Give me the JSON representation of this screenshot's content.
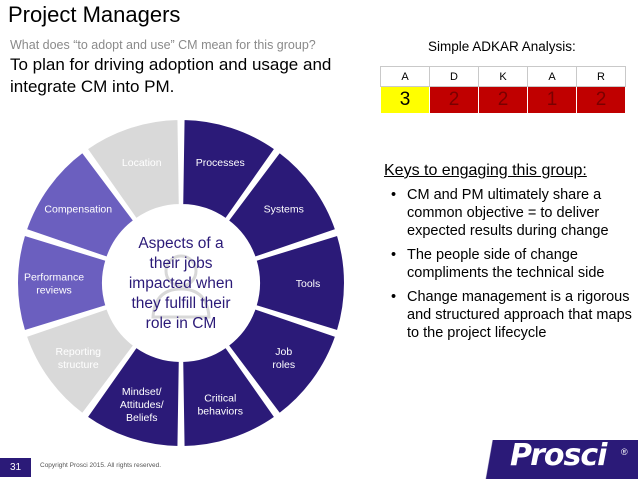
{
  "slide": {
    "title": "Project Managers",
    "question": "What does “to adopt and use” CM mean for this group?",
    "purpose": "To plan for driving adoption and usage and integrate CM into PM.",
    "slide_number": "31",
    "copyright": "Copyright Prosci 2015. All rights reserved.",
    "logo": "Prosci",
    "logo_mark": "®"
  },
  "adkar": {
    "label": "Simple ADKAR Analysis:",
    "headers": [
      "A",
      "D",
      "K",
      "A",
      "R"
    ],
    "scores": [
      "3",
      "2",
      "2",
      "1",
      "2"
    ],
    "score_colors": [
      "#ffff00",
      "#c00000",
      "#c00000",
      "#c00000",
      "#c00000"
    ]
  },
  "wheel": {
    "center_text": [
      "Aspects of a",
      "their jobs",
      "impacted when",
      "they fulfill their",
      "role in CM"
    ],
    "center_icon": "person-icon",
    "colors": {
      "purple": "#2b1a78",
      "light_purple": "#6b5fbf",
      "gray": "#d9d9d9"
    },
    "segments": [
      {
        "lines": [
          "Processes"
        ],
        "style": "purple"
      },
      {
        "lines": [
          "Systems"
        ],
        "style": "purple"
      },
      {
        "lines": [
          "Tools"
        ],
        "style": "purple"
      },
      {
        "lines": [
          "Job",
          "roles"
        ],
        "style": "purple"
      },
      {
        "lines": [
          "Critical",
          "behaviors"
        ],
        "style": "purple"
      },
      {
        "lines": [
          "Mindset/",
          "Attitudes/",
          "Beliefs"
        ],
        "style": "purple"
      },
      {
        "lines": [
          "Reporting",
          "structure"
        ],
        "style": "gray"
      },
      {
        "lines": [
          "Performance",
          "reviews"
        ],
        "style": "light_purple"
      },
      {
        "lines": [
          "Compensation"
        ],
        "style": "light_purple"
      },
      {
        "lines": [
          "Location"
        ],
        "style": "gray"
      }
    ]
  },
  "keys": {
    "heading": "Keys to engaging this group:",
    "bullet_char": "•",
    "items": [
      "CM and PM ultimately share a common objective = to deliver expected results during change",
      "The people side of change compliments the technical side",
      "Change management is a rigorous and structured approach that maps to the project lifecycle"
    ]
  }
}
